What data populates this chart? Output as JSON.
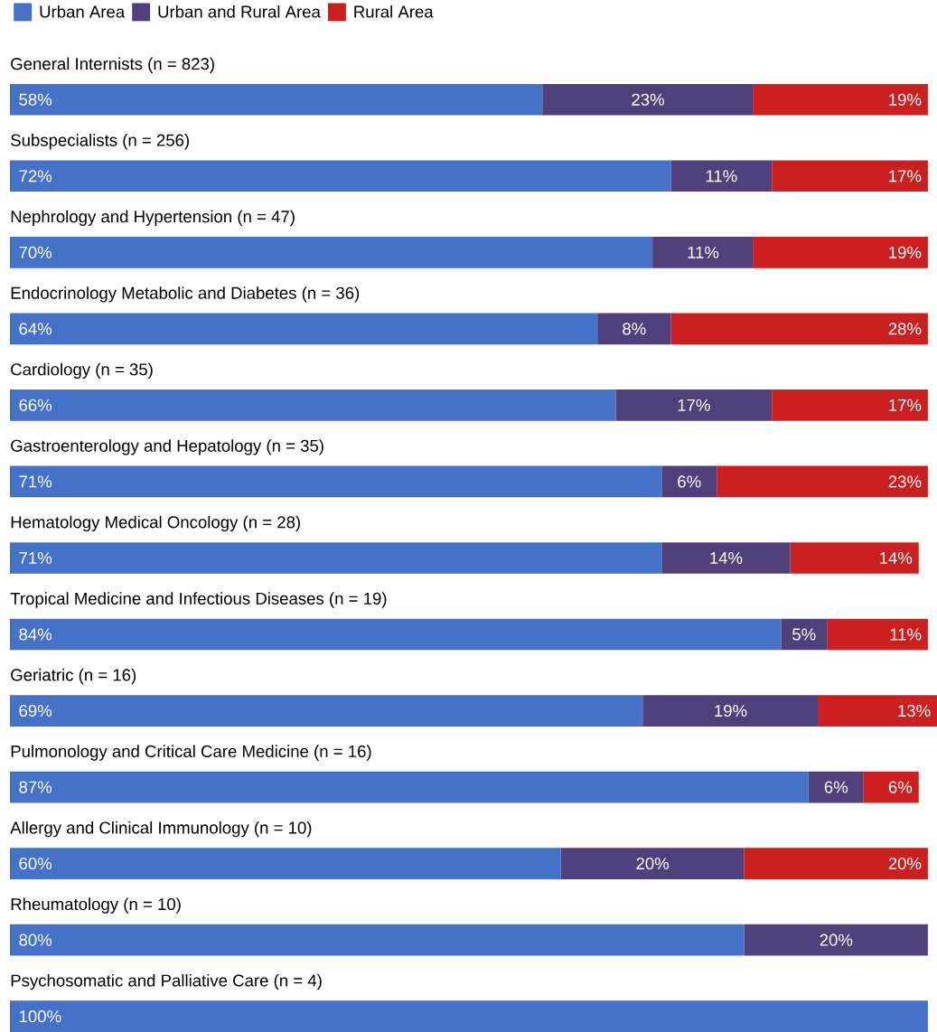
{
  "chart_data": {
    "type": "bar",
    "orientation": "horizontal",
    "stacked": true,
    "categories": [
      "General Internists (n = 823)",
      "Subspecialists (n = 256)",
      "Nephrology and Hypertension (n = 47)",
      "Endocrinology Metabolic and Diabetes (n = 36)",
      "Cardiology (n = 35)",
      "Gastroenterology and Hepatology (n = 35)",
      "Hematology Medical Oncology (n = 28)",
      "Tropical Medicine and Infectious Diseases (n = 19)",
      "Geriatric (n = 16)",
      "Pulmonology and Critical Care Medicine (n = 16)",
      "Allergy and Clinical Immunology (n = 10)",
      "Rheumatology (n = 10)",
      "Psychosomatic and Palliative Care (n = 4)"
    ],
    "series": [
      {
        "name": "Urban Area",
        "color": "#4472c9",
        "values": [
          58,
          72,
          70,
          64,
          66,
          71,
          71,
          84,
          69,
          87,
          60,
          80,
          100
        ],
        "value_labels": [
          "58%",
          "72%",
          "70%",
          "64%",
          "66%",
          "71%",
          "71%",
          "84%",
          "69%",
          "87%",
          "60%",
          "80%",
          "100%"
        ]
      },
      {
        "name": "Urban and Rural Area",
        "color": "#503f7b",
        "values": [
          23,
          11,
          11,
          8,
          17,
          6,
          14,
          5,
          19,
          6,
          20,
          20,
          0
        ],
        "value_labels": [
          "23%",
          "11%",
          "11%",
          "8%",
          "17%",
          "6%",
          "14%",
          "5%",
          "19%",
          "6%",
          "20%",
          "20%",
          null
        ]
      },
      {
        "name": "Rural Area",
        "color": "#cc1f1f",
        "values": [
          19,
          17,
          19,
          28,
          17,
          23,
          14,
          11,
          13,
          6,
          20,
          0,
          0
        ],
        "value_labels": [
          "19%",
          "17%",
          "19%",
          "28%",
          "17%",
          "23%",
          "14%",
          "11%",
          "13%",
          "6%",
          "20%",
          null,
          null
        ]
      }
    ],
    "legend": "top left"
  }
}
